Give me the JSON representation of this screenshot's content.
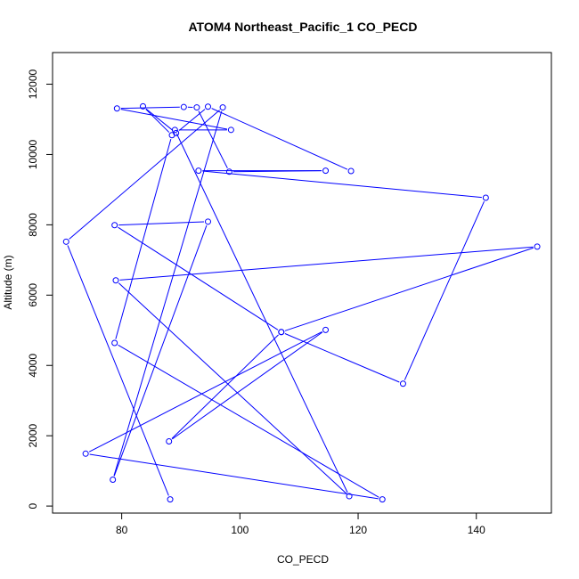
{
  "chart_data": {
    "type": "line",
    "title": "ATOM4 Northeast_Pacific_1 CO_PECD",
    "xlabel": "CO_PECD",
    "ylabel": "Altitude (m)",
    "xlim": [
      68.3,
      152.7
    ],
    "ylim": [
      -200,
      12900
    ],
    "xticks": [
      80,
      100,
      120,
      140
    ],
    "yticks": [
      0,
      2000,
      4000,
      6000,
      8000,
      10000,
      12000
    ],
    "series_color": "#0000ff",
    "marker": "open-circle",
    "grid": false,
    "legend": "none",
    "series": [
      {
        "x": [
          88.2,
          70.6,
          97.1,
          78.5,
          94.6,
          78.8,
          107.0,
          150.3,
          79.0,
          118.5,
          89.0,
          98.5,
          79.2,
          90.5,
          92.7,
          98.2,
          114.5,
          93.0,
          141.6,
          127.6,
          107.0,
          88.0,
          114.5,
          73.9,
          124.1,
          78.8,
          88.5,
          83.6,
          89.2,
          94.6,
          118.8
        ],
        "y": [
          190,
          7520,
          11340,
          750,
          8090,
          7990,
          4950,
          7380,
          6420,
          280,
          10700,
          10700,
          11310,
          11350,
          11340,
          9510,
          9540,
          9540,
          8770,
          3480,
          4950,
          1840,
          5010,
          1490,
          190,
          4640,
          10550,
          11370,
          10610,
          11360,
          9530
        ]
      }
    ]
  }
}
